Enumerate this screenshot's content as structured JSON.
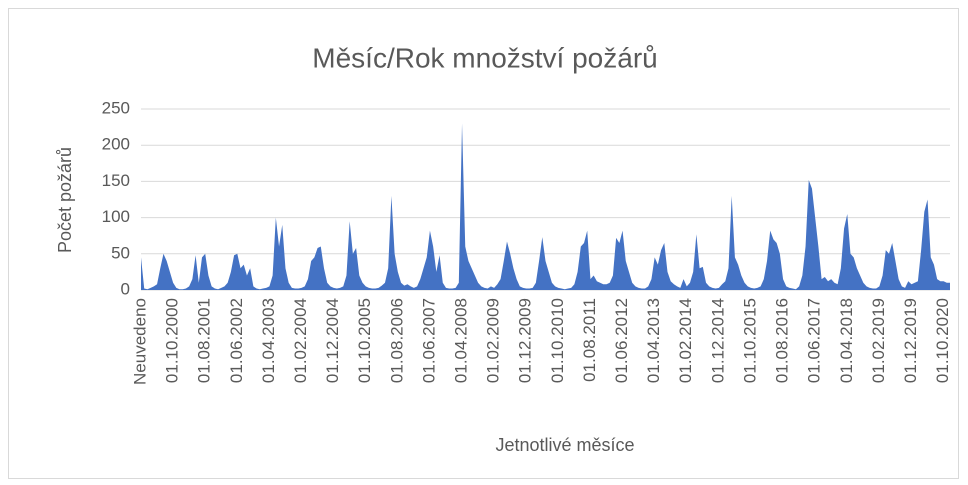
{
  "chart_data": {
    "type": "area",
    "title": "Měsíc/Rok množství požárů",
    "x_label": "Jetnotlivé měsíce",
    "y_label": "Počet požárů",
    "color": "#4472c4",
    "grid": true,
    "ylim": [
      0,
      250
    ],
    "yticks": [
      0,
      50,
      100,
      150,
      200,
      250
    ],
    "categories": [
      "Neuvedeno",
      null,
      null,
      null,
      null,
      null,
      null,
      null,
      null,
      null,
      "01.10.2000",
      null,
      null,
      null,
      null,
      null,
      null,
      null,
      null,
      null,
      "01.08.2001",
      null,
      null,
      null,
      null,
      null,
      null,
      null,
      null,
      null,
      "01.06.2002",
      null,
      null,
      null,
      null,
      null,
      null,
      null,
      null,
      null,
      "01.04.2003",
      null,
      null,
      null,
      null,
      null,
      null,
      null,
      null,
      null,
      "01.02.2004",
      null,
      null,
      null,
      null,
      null,
      null,
      null,
      null,
      null,
      "01.12.2004",
      null,
      null,
      null,
      null,
      null,
      null,
      null,
      null,
      null,
      "01.10.2005",
      null,
      null,
      null,
      null,
      null,
      null,
      null,
      null,
      null,
      "01.08.2006",
      null,
      null,
      null,
      null,
      null,
      null,
      null,
      null,
      null,
      "01.06.2007",
      null,
      null,
      null,
      null,
      null,
      null,
      null,
      null,
      null,
      "01.04.2008",
      null,
      null,
      null,
      null,
      null,
      null,
      null,
      null,
      null,
      "01.02.2009",
      null,
      null,
      null,
      null,
      null,
      null,
      null,
      null,
      null,
      "01.12.2009",
      null,
      null,
      null,
      null,
      null,
      null,
      null,
      null,
      null,
      "01.10.2010",
      null,
      null,
      null,
      null,
      null,
      null,
      null,
      null,
      null,
      "01.08.2011",
      null,
      null,
      null,
      null,
      null,
      null,
      null,
      null,
      null,
      "01.06.2012",
      null,
      null,
      null,
      null,
      null,
      null,
      null,
      null,
      null,
      "01.04.2013",
      null,
      null,
      null,
      null,
      null,
      null,
      null,
      null,
      null,
      "01.02.2014",
      null,
      null,
      null,
      null,
      null,
      null,
      null,
      null,
      null,
      "01.12.2014",
      null,
      null,
      null,
      null,
      null,
      null,
      null,
      null,
      null,
      "01.10.2015",
      null,
      null,
      null,
      null,
      null,
      null,
      null,
      null,
      null,
      "01.08.2016",
      null,
      null,
      null,
      null,
      null,
      null,
      null,
      null,
      null,
      "01.06.2017",
      null,
      null,
      null,
      null,
      null,
      null,
      null,
      null,
      null,
      "01.04.2018",
      null,
      null,
      null,
      null,
      null,
      null,
      null,
      null,
      null,
      "01.02.2019",
      null,
      null,
      null,
      null,
      null,
      null,
      null,
      null,
      null,
      "01.12.2019",
      null,
      null,
      null,
      null,
      null,
      null,
      null,
      null,
      null,
      "01.10.2020",
      null,
      null
    ],
    "values": [
      45,
      2,
      1,
      3,
      5,
      8,
      30,
      50,
      40,
      25,
      10,
      3,
      1,
      1,
      2,
      5,
      15,
      48,
      10,
      45,
      50,
      20,
      5,
      2,
      1,
      3,
      5,
      10,
      25,
      48,
      50,
      30,
      35,
      20,
      30,
      5,
      2,
      1,
      2,
      3,
      5,
      20,
      100,
      60,
      90,
      30,
      10,
      3,
      2,
      2,
      3,
      5,
      15,
      40,
      45,
      58,
      60,
      30,
      10,
      5,
      3,
      2,
      3,
      5,
      20,
      95,
      50,
      58,
      20,
      10,
      5,
      3,
      2,
      2,
      3,
      6,
      10,
      30,
      130,
      50,
      25,
      10,
      6,
      8,
      5,
      3,
      5,
      15,
      30,
      45,
      82,
      60,
      25,
      48,
      10,
      3,
      2,
      2,
      3,
      10,
      230,
      60,
      40,
      30,
      20,
      10,
      5,
      3,
      2,
      5,
      3,
      8,
      15,
      40,
      67,
      50,
      30,
      15,
      5,
      3,
      2,
      2,
      3,
      10,
      40,
      73,
      40,
      25,
      10,
      5,
      3,
      2,
      1,
      2,
      3,
      8,
      25,
      60,
      65,
      82,
      15,
      20,
      12,
      10,
      8,
      8,
      10,
      20,
      72,
      65,
      82,
      40,
      25,
      10,
      5,
      3,
      2,
      2,
      5,
      15,
      45,
      35,
      55,
      65,
      25,
      12,
      8,
      5,
      3,
      15,
      5,
      10,
      25,
      77,
      30,
      32,
      10,
      5,
      3,
      2,
      3,
      8,
      12,
      30,
      130,
      45,
      35,
      20,
      10,
      5,
      3,
      2,
      3,
      5,
      15,
      40,
      82,
      70,
      65,
      50,
      15,
      5,
      3,
      2,
      1,
      5,
      20,
      60,
      152,
      140,
      100,
      60,
      15,
      18,
      12,
      15,
      10,
      8,
      30,
      85,
      105,
      50,
      45,
      30,
      20,
      10,
      5,
      3,
      2,
      2,
      5,
      20,
      55,
      50,
      65,
      40,
      15,
      5,
      3,
      12,
      8,
      10,
      12,
      55,
      108,
      125,
      45,
      35,
      15,
      12,
      12,
      10,
      10
    ]
  }
}
